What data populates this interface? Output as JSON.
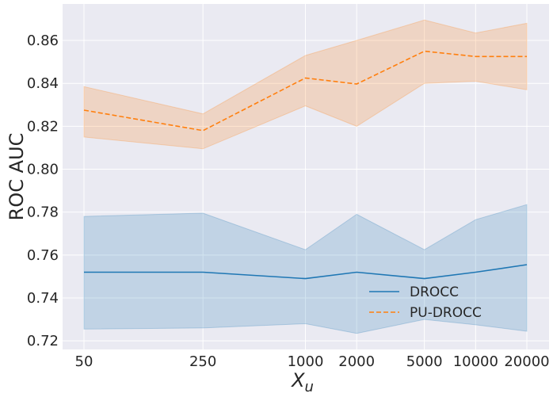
{
  "chart_data": {
    "type": "line",
    "title": "",
    "xlabel_main": "X",
    "xlabel_sub": "u",
    "ylabel": "ROC AUC",
    "categories": [
      "50",
      "250",
      "1000",
      "2000",
      "5000",
      "10000",
      "20000"
    ],
    "x_scale": "log",
    "x_values": [
      50,
      250,
      1000,
      2000,
      5000,
      10000,
      20000
    ],
    "ylim": [
      0.716,
      0.877
    ],
    "yticks": [
      "0.72",
      "0.74",
      "0.76",
      "0.78",
      "0.80",
      "0.82",
      "0.84",
      "0.86"
    ],
    "grid": true,
    "legend_position": "lower-right",
    "series": [
      {
        "name": "DROCC",
        "color": "#1f77b4",
        "line_style": "solid",
        "values": [
          0.752,
          0.752,
          0.749,
          0.752,
          0.749,
          0.752,
          0.7555
        ],
        "band_lower": [
          0.7255,
          0.726,
          0.728,
          0.7235,
          0.73,
          0.7275,
          0.7245
        ],
        "band_upper": [
          0.778,
          0.7795,
          0.7625,
          0.779,
          0.7625,
          0.7765,
          0.7835
        ]
      },
      {
        "name": "PU-DROCC",
        "color": "#ff7f0e",
        "line_style": "dashed",
        "values": [
          0.8275,
          0.818,
          0.8425,
          0.8397,
          0.855,
          0.8525,
          0.8525
        ],
        "band_lower": [
          0.815,
          0.8095,
          0.8295,
          0.82,
          0.84,
          0.841,
          0.837
        ],
        "band_upper": [
          0.8385,
          0.8258,
          0.853,
          0.86,
          0.8695,
          0.8635,
          0.868
        ]
      }
    ]
  }
}
